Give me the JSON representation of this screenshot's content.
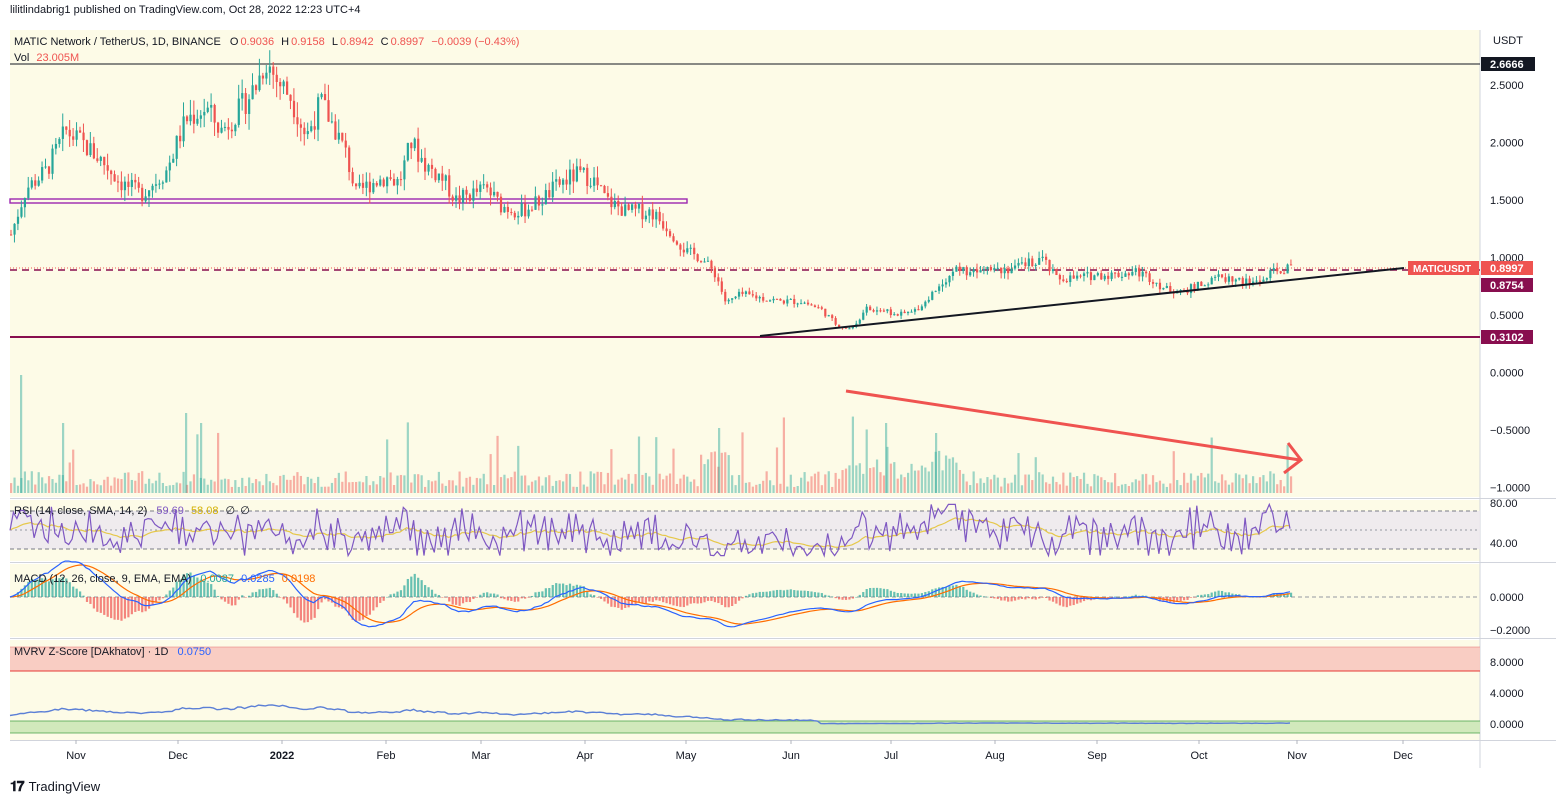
{
  "header": {
    "publisher": "lilitlindabrig1 published on TradingView.com, Oct 28, 2022 12:23 UTC+4"
  },
  "legend": {
    "symbol": "MATIC Network / TetherUS, 1D, BINANCE",
    "open_label": "O",
    "open": "0.9036",
    "high_label": "H",
    "high": "0.9158",
    "low_label": "L",
    "low": "0.8942",
    "close_label": "C",
    "close": "0.8997",
    "change": "−0.0039 (−0.43%)",
    "vol_label": "Vol",
    "vol": "23.005M"
  },
  "rsi_legend": {
    "label": "RSI (14, close, SMA, 14, 2)",
    "v1": "59.69",
    "v2": "58.08",
    "v3": "∅",
    "v4": "∅"
  },
  "macd_legend": {
    "label": "MACD (12, 26, close, 9, EMA, EMA)",
    "v1": "0.0087",
    "v2": "0.0285",
    "v3": "0.0198"
  },
  "mvrv_legend": {
    "label": "MVRV Z-Score [DAkhatov] · 1D",
    "v1": "0.0750"
  },
  "axis": {
    "currency": "USDT",
    "price_ticks": [
      "2.5000",
      "2.0000",
      "1.5000",
      "1.0000",
      "0.5000",
      "0.0000",
      "−0.5000",
      "−1.0000"
    ],
    "rsi_ticks": [
      "80.00",
      "40.00"
    ],
    "macd_ticks": [
      "0.0000",
      "−0.2000"
    ],
    "mvrv_ticks": [
      "8.0000",
      "4.0000",
      "0.0000"
    ],
    "time_ticks": [
      "Nov",
      "Dec",
      "2022",
      "Feb",
      "Mar",
      "Apr",
      "May",
      "Jun",
      "Jul",
      "Aug",
      "Sep",
      "Oct",
      "Nov",
      "Dec"
    ]
  },
  "price_labels": {
    "resistance": "2.6666",
    "symbol_tag": "MATICUSDT",
    "last": "0.8997",
    "support_dashed": "0.8754",
    "support_low": "0.3102"
  },
  "colors": {
    "background": "#fdfbe7",
    "up": "#26a69a",
    "down": "#ef5350",
    "rsi_line": "#7e57c2",
    "rsi_ma": "#e6c84a",
    "macd_line": "#2962ff",
    "signal_line": "#ff6d00",
    "mvrv_line": "#5b7fd6",
    "maroon": "#880e4f",
    "purple": "#9c27b0",
    "arrow": "#ef5350"
  },
  "chart_data": [
    {
      "type": "candlestick",
      "title": "MATIC Network / TetherUS, 1D, BINANCE",
      "x_range": [
        "2021-10-13",
        "2022-12-31"
      ],
      "ylim": [
        -1.05,
        2.75
      ],
      "series_monthly_approx": [
        {
          "month": "2021-10",
          "close": 1.7
        },
        {
          "month": "2021-11",
          "close": 1.6
        },
        {
          "month": "2021-12",
          "close": 2.55
        },
        {
          "month": "2022-01",
          "close": 1.7
        },
        {
          "month": "2022-02",
          "close": 1.55
        },
        {
          "month": "2022-03",
          "close": 1.45
        },
        {
          "month": "2022-04",
          "close": 1.35
        },
        {
          "month": "2022-05",
          "close": 0.65
        },
        {
          "month": "2022-06",
          "close": 0.38
        },
        {
          "month": "2022-07",
          "close": 0.9
        },
        {
          "month": "2022-08",
          "close": 0.82
        },
        {
          "month": "2022-09",
          "close": 0.76
        },
        {
          "month": "2022-10",
          "close": 0.8997
        }
      ],
      "horizontal_levels": [
        2.6666,
        0.8754,
        0.3102
      ],
      "zone": [
        1.47,
        1.5
      ],
      "trendline": {
        "from": [
          "2022-05-20",
          0.31
        ],
        "to": [
          "2022-12-16",
          0.9
        ]
      }
    },
    {
      "type": "line",
      "title": "RSI (14, close, SMA, 14, 2)",
      "ylim": [
        30,
        85
      ],
      "last": [
        59.69,
        58.08
      ]
    },
    {
      "type": "line",
      "title": "MACD (12, 26, close, 9, EMA, EMA)",
      "ylim": [
        -0.25,
        0.25
      ],
      "last": [
        0.0087,
        0.0285,
        0.0198
      ]
    },
    {
      "type": "line",
      "title": "MVRV Z-Score [DAkhatov] · 1D",
      "ylim": [
        -1,
        11
      ],
      "last": 0.075
    }
  ],
  "footer": {
    "brand": "TradingView"
  }
}
